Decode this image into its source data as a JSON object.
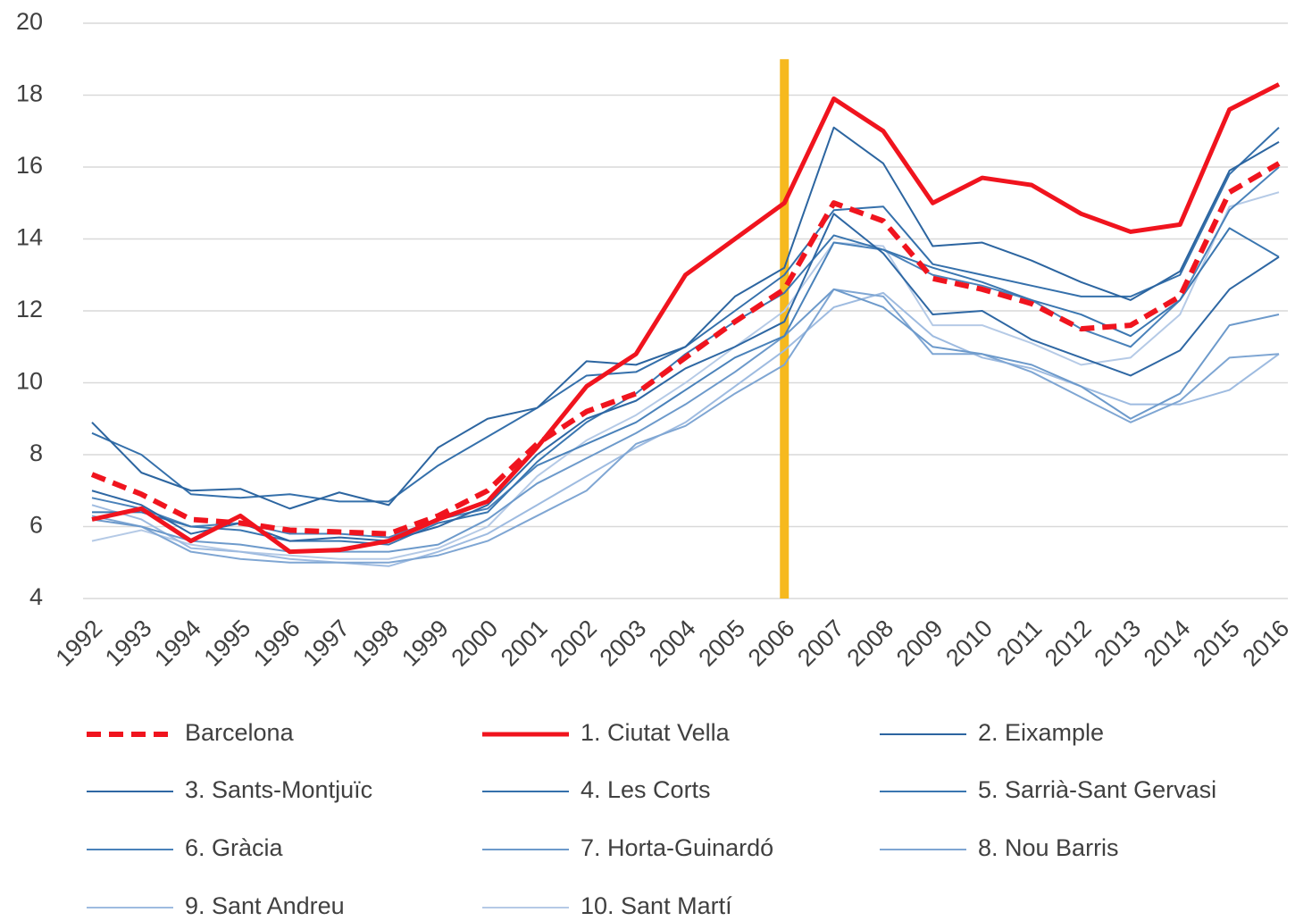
{
  "chart_data": {
    "type": "line",
    "categories": [
      "1992",
      "1993",
      "1994",
      "1995",
      "1996",
      "1997",
      "1998",
      "1999",
      "2000",
      "2001",
      "2002",
      "2003",
      "2004",
      "2005",
      "2006",
      "2007",
      "2008",
      "2009",
      "2010",
      "2011",
      "2012",
      "2013",
      "2014",
      "2015",
      "2016"
    ],
    "ylim": [
      4,
      20
    ],
    "yticks": [
      4,
      6,
      8,
      10,
      12,
      14,
      16,
      18,
      20
    ],
    "grid": true,
    "legend": "bottom",
    "vertical_line": {
      "x": "2006",
      "color": "#f6b91e",
      "top": 19
    },
    "series": [
      {
        "name": "Barcelona",
        "color": "#f0141e",
        "width": 6,
        "dashed": true,
        "values": [
          7.45,
          6.9,
          6.2,
          6.1,
          5.9,
          5.85,
          5.8,
          6.3,
          7.0,
          8.3,
          9.2,
          9.7,
          10.7,
          11.7,
          12.6,
          15.0,
          14.5,
          12.9,
          12.6,
          12.2,
          11.5,
          11.6,
          12.4,
          15.3,
          16.1
        ]
      },
      {
        "name": "1. Ciutat Vella",
        "color": "#f0141e",
        "width": 5,
        "dashed": false,
        "values": [
          6.2,
          6.5,
          5.6,
          6.3,
          5.3,
          5.35,
          5.6,
          6.2,
          6.7,
          8.2,
          9.9,
          10.8,
          13.0,
          14.0,
          15.0,
          17.9,
          17.0,
          15.0,
          15.7,
          15.5,
          14.7,
          14.2,
          14.4,
          17.6,
          18.3
        ]
      },
      {
        "name": "2. Eixample",
        "color": "#2c65a0",
        "width": 2,
        "dashed": false,
        "values": [
          8.9,
          7.5,
          7.0,
          7.05,
          6.5,
          6.95,
          6.6,
          8.2,
          9.0,
          9.3,
          10.6,
          10.5,
          11.0,
          12.4,
          13.2,
          17.1,
          16.1,
          13.8,
          13.9,
          13.4,
          12.8,
          12.3,
          13.1,
          15.9,
          16.7
        ]
      },
      {
        "name": "3. Sants-Montjuïc",
        "color": "#2e67a3",
        "width": 2,
        "dashed": false,
        "values": [
          7.0,
          6.6,
          5.8,
          6.1,
          5.6,
          5.7,
          5.6,
          6.0,
          6.6,
          8.0,
          9.0,
          9.5,
          10.4,
          11.0,
          11.7,
          14.7,
          13.6,
          11.9,
          12.0,
          11.2,
          10.7,
          10.2,
          10.9,
          12.6,
          13.5
        ]
      },
      {
        "name": "4. Les Corts",
        "color": "#3570ab",
        "width": 2,
        "dashed": false,
        "values": [
          8.6,
          8.0,
          6.9,
          6.8,
          6.9,
          6.7,
          6.7,
          7.7,
          8.5,
          9.3,
          10.2,
          10.3,
          11.0,
          12.0,
          13.0,
          14.8,
          14.9,
          13.3,
          13.0,
          12.7,
          12.4,
          12.4,
          13.0,
          15.8,
          17.1
        ]
      },
      {
        "name": "5. Sarrià-Sant Gervasi",
        "color": "#3a76b0",
        "width": 2,
        "dashed": false,
        "values": [
          6.4,
          6.4,
          6.0,
          5.9,
          5.6,
          5.6,
          5.5,
          6.1,
          6.4,
          7.8,
          8.9,
          9.7,
          10.8,
          11.7,
          12.5,
          14.1,
          13.7,
          13.2,
          12.8,
          12.3,
          11.9,
          11.3,
          12.3,
          14.3,
          13.5
        ]
      },
      {
        "name": "6. Gràcia",
        "color": "#4a82ba",
        "width": 2,
        "dashed": false,
        "values": [
          6.8,
          6.5,
          6.0,
          6.1,
          5.8,
          5.8,
          5.7,
          6.2,
          6.5,
          7.7,
          8.3,
          8.9,
          9.8,
          10.7,
          11.3,
          13.9,
          13.7,
          13.0,
          12.7,
          12.3,
          11.5,
          11.0,
          12.3,
          14.8,
          16.0
        ]
      },
      {
        "name": "7. Horta-Guinardó",
        "color": "#6d9acb",
        "width": 2,
        "dashed": false,
        "values": [
          6.2,
          6.0,
          5.6,
          5.5,
          5.3,
          5.3,
          5.3,
          5.5,
          6.2,
          7.2,
          7.9,
          8.6,
          9.4,
          10.3,
          11.3,
          12.6,
          12.1,
          11.0,
          10.8,
          10.5,
          9.9,
          9.0,
          9.7,
          11.6,
          11.9
        ]
      },
      {
        "name": "8. Nou Barris",
        "color": "#7fa6d3",
        "width": 2,
        "dashed": false,
        "values": [
          6.3,
          6.0,
          5.3,
          5.1,
          5.0,
          5.0,
          5.0,
          5.2,
          5.6,
          6.3,
          7.0,
          8.3,
          8.8,
          9.7,
          10.5,
          12.6,
          12.4,
          10.8,
          10.8,
          10.3,
          9.6,
          8.9,
          9.5,
          10.7,
          10.8
        ]
      },
      {
        "name": "9. Sant Andreu",
        "color": "#9ebbe0",
        "width": 2,
        "dashed": false,
        "values": [
          6.6,
          6.2,
          5.4,
          5.3,
          5.1,
          5.0,
          4.9,
          5.3,
          5.8,
          6.6,
          7.4,
          8.2,
          8.9,
          9.9,
          10.9,
          12.1,
          12.5,
          11.3,
          10.7,
          10.4,
          9.9,
          9.4,
          9.4,
          9.8,
          10.8
        ]
      },
      {
        "name": "10. Sant Martí",
        "color": "#b5cae6",
        "width": 2,
        "dashed": false,
        "values": [
          5.6,
          5.9,
          5.5,
          5.3,
          5.2,
          5.1,
          5.1,
          5.4,
          6.0,
          7.4,
          8.4,
          9.1,
          10.0,
          11.0,
          12.0,
          13.9,
          13.8,
          11.6,
          11.6,
          11.1,
          10.5,
          10.7,
          11.9,
          14.9,
          15.3
        ]
      }
    ]
  }
}
